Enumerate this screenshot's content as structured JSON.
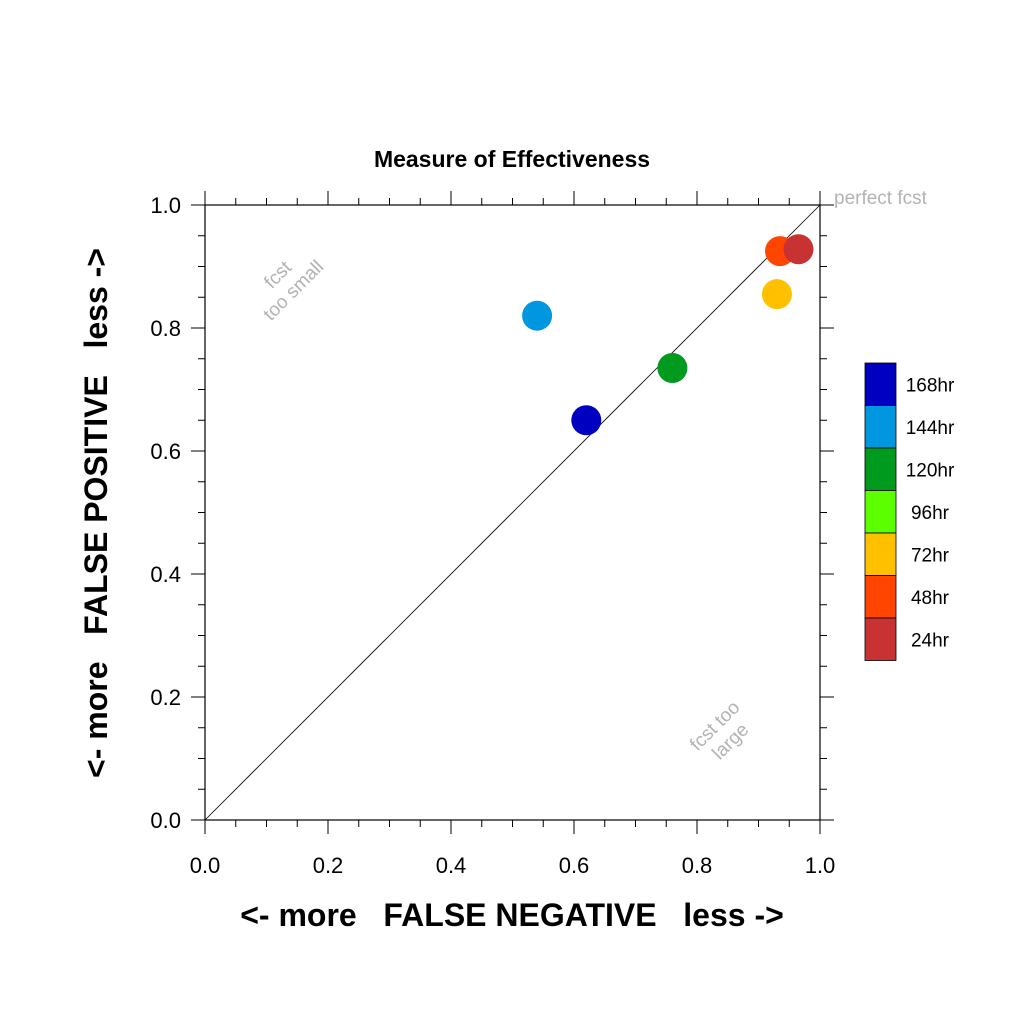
{
  "chart_data": {
    "type": "scatter",
    "title": "Measure of Effectiveness",
    "xlabel": "<- more   FALSE NEGATIVE   less ->",
    "ylabel": "<- more   FALSE POSITIVE   less ->",
    "xlim": [
      0.0,
      1.0
    ],
    "ylim": [
      0.0,
      1.0
    ],
    "x_ticks": [
      "0.0",
      "0.2",
      "0.4",
      "0.6",
      "0.8",
      "1.0"
    ],
    "y_ticks": [
      "0.0",
      "0.2",
      "0.4",
      "0.6",
      "0.8",
      "1.0"
    ],
    "grid": false,
    "reference_line": {
      "from": [
        0,
        0
      ],
      "to": [
        1,
        1
      ]
    },
    "annotations": [
      {
        "text": "perfect fcst"
      },
      {
        "lines": [
          "fcst",
          "too small"
        ]
      },
      {
        "lines": [
          "fcst too",
          "large"
        ]
      }
    ],
    "legend_position": "right",
    "series": [
      {
        "name": "168hr",
        "color": "#0000c0",
        "points": [
          [
            0.62,
            0.65
          ]
        ]
      },
      {
        "name": "144hr",
        "color": "#0096e0",
        "points": [
          [
            0.54,
            0.82
          ]
        ]
      },
      {
        "name": "120hr",
        "color": "#009a1f",
        "points": [
          [
            0.76,
            0.735
          ]
        ]
      },
      {
        "name": "96hr",
        "color": "#5cff00",
        "points": []
      },
      {
        "name": "72hr",
        "color": "#ffc000",
        "points": [
          [
            0.93,
            0.855
          ]
        ]
      },
      {
        "name": "48hr",
        "color": "#ff4500",
        "points": [
          [
            0.935,
            0.925
          ]
        ]
      },
      {
        "name": "24hr",
        "color": "#c83232",
        "points": [
          [
            0.965,
            0.928
          ]
        ]
      }
    ]
  }
}
